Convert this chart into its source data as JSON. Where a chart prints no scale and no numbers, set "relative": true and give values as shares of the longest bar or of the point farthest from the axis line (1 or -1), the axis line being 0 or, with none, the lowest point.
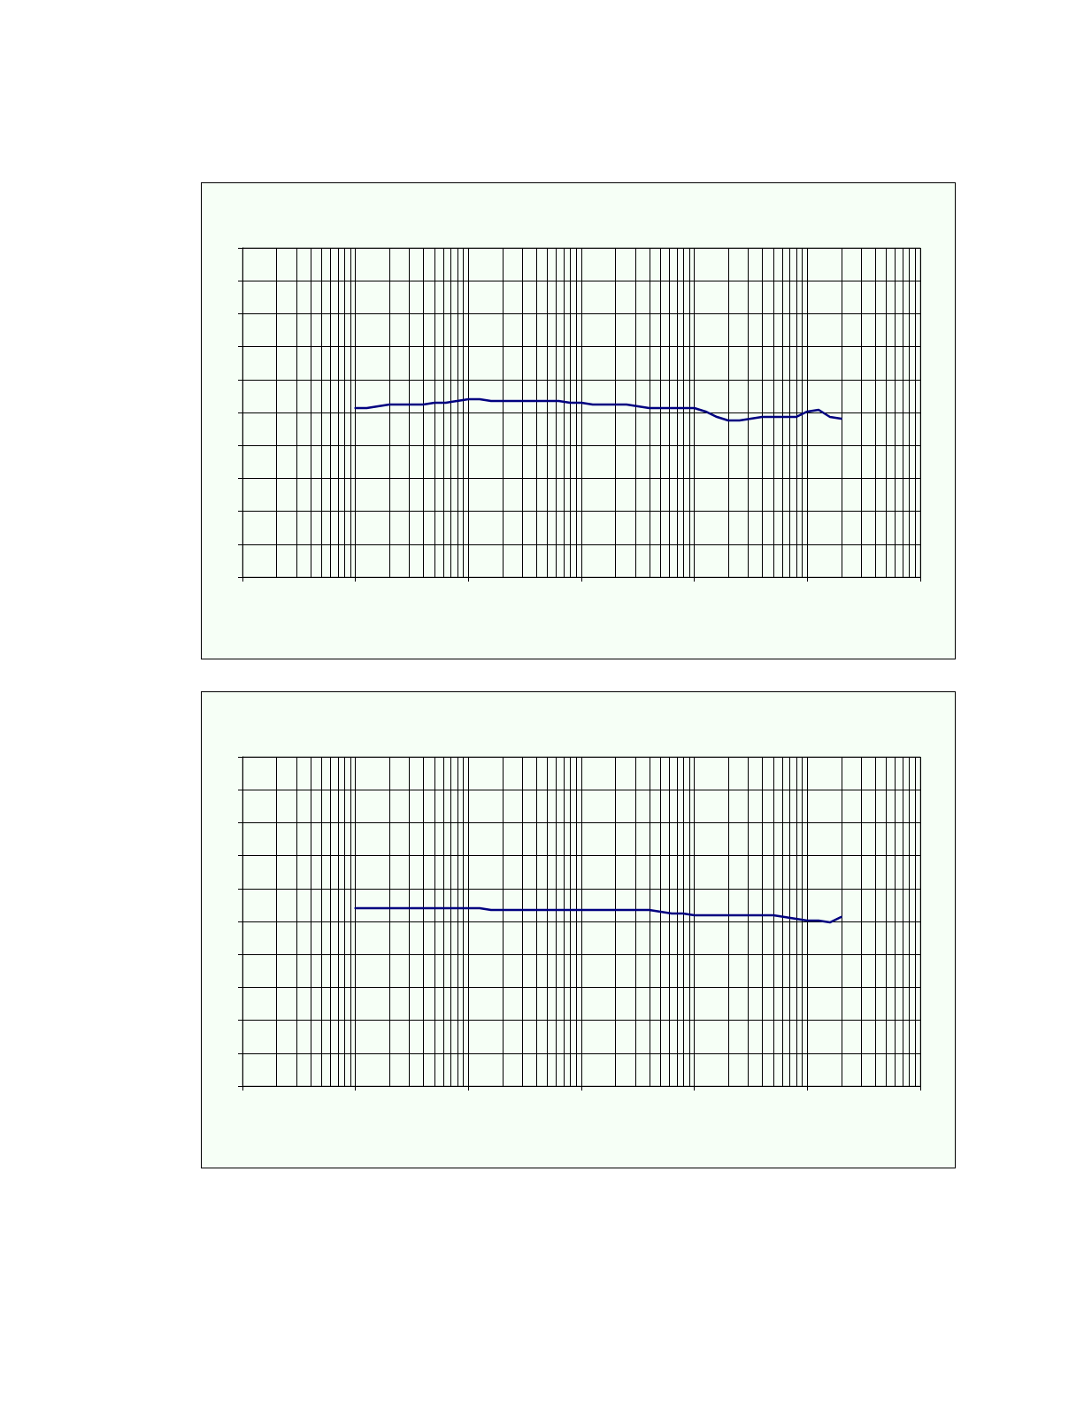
{
  "chart_data": [
    {
      "type": "line",
      "relative": true,
      "tick_labels": false,
      "grid": true,
      "color": "#000080",
      "categories": [
        null,
        null,
        null,
        null,
        null,
        null,
        null,
        null,
        null,
        null,
        null,
        null,
        null,
        null,
        null,
        null,
        null,
        null,
        null,
        null,
        null,
        null,
        null,
        null,
        null,
        null,
        null,
        null,
        null,
        null,
        null,
        null,
        null,
        null,
        null,
        null,
        null,
        null,
        null,
        null,
        null,
        null,
        null,
        null,
        null,
        null,
        null,
        null,
        null,
        null,
        null,
        null,
        null,
        null,
        null,
        null,
        null,
        null,
        null,
        null,
        null
      ],
      "values": [
        null,
        null,
        null,
        null,
        null,
        null,
        null,
        null,
        null,
        null,
        0.95,
        0.95,
        0.96,
        0.97,
        0.97,
        0.97,
        0.97,
        0.98,
        0.98,
        0.99,
        1,
        1,
        0.99,
        0.99,
        0.99,
        0.99,
        0.99,
        0.99,
        0.99,
        0.98,
        0.98,
        0.97,
        0.97,
        0.97,
        0.97,
        0.96,
        0.95,
        0.95,
        0.95,
        0.95,
        0.95,
        0.93,
        0.9,
        0.88,
        0.88,
        0.89,
        0.9,
        0.9,
        0.9,
        0.9,
        0.93,
        0.94,
        0.9,
        0.89,
        null,
        null,
        null,
        null,
        null,
        null,
        null
      ]
    },
    {
      "type": "line",
      "relative": true,
      "tick_labels": false,
      "grid": true,
      "color": "#000080",
      "categories": [
        null,
        null,
        null,
        null,
        null,
        null,
        null,
        null,
        null,
        null,
        null,
        null,
        null,
        null,
        null,
        null,
        null,
        null,
        null,
        null,
        null,
        null,
        null,
        null,
        null,
        null,
        null,
        null,
        null,
        null,
        null,
        null,
        null,
        null,
        null,
        null,
        null,
        null,
        null,
        null,
        null,
        null,
        null,
        null,
        null,
        null,
        null,
        null,
        null,
        null,
        null,
        null,
        null,
        null,
        null,
        null,
        null,
        null,
        null,
        null,
        null
      ],
      "values": [
        null,
        null,
        null,
        null,
        null,
        null,
        null,
        null,
        null,
        null,
        1,
        1,
        1,
        1,
        1,
        1,
        1,
        1,
        1,
        1,
        1,
        1,
        0.99,
        0.99,
        0.99,
        0.99,
        0.99,
        0.99,
        0.99,
        0.99,
        0.99,
        0.99,
        0.99,
        0.99,
        0.99,
        0.99,
        0.99,
        0.98,
        0.97,
        0.97,
        0.96,
        0.96,
        0.96,
        0.96,
        0.96,
        0.96,
        0.96,
        0.96,
        0.95,
        0.94,
        0.93,
        0.93,
        0.92,
        0.95,
        null,
        null,
        null,
        null,
        null,
        null,
        null
      ]
    }
  ]
}
